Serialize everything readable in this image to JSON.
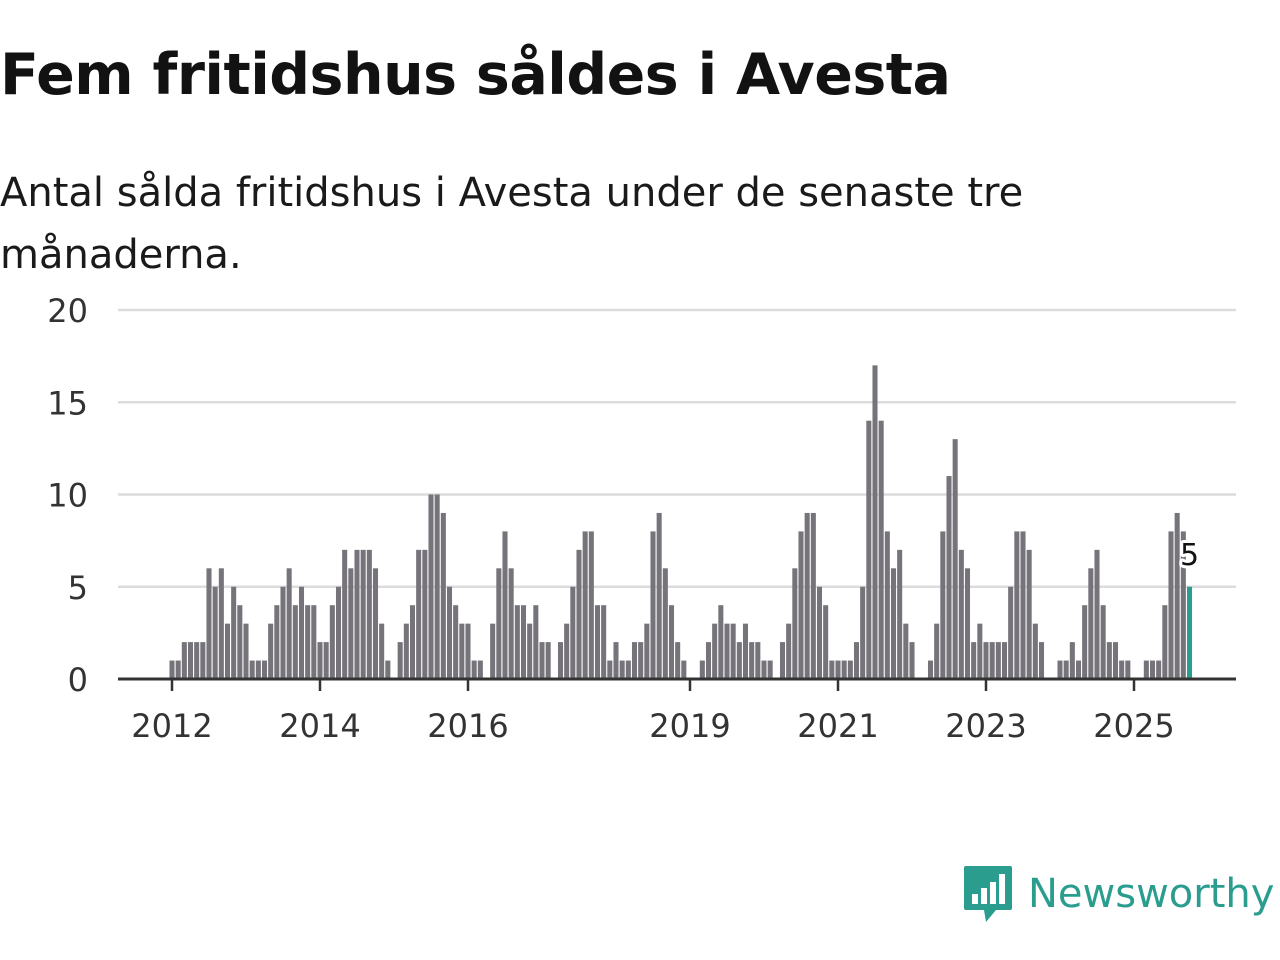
{
  "title": "Fem fritidshus såldes i Avesta",
  "subtitle": "Antal sålda fritidshus i Avesta under de senaste tre månaderna.",
  "brand": {
    "name": "Newsworthy",
    "icon": "bar-chart-speech-bubble-icon",
    "color": "#2a9d8f"
  },
  "colors": {
    "bar": "#76747a",
    "highlight": "#2a9d8f",
    "grid": "#dcdcdc",
    "axis": "#333333",
    "text": "#333333"
  },
  "chart_data": {
    "type": "bar",
    "title": "Fem fritidshus såldes i Avesta",
    "subtitle": "Antal sålda fritidshus i Avesta under de senaste tre månaderna.",
    "xlabel": "",
    "ylabel": "",
    "ylim": [
      0,
      20
    ],
    "yticks": [
      0,
      5,
      10,
      15,
      20
    ],
    "grid": true,
    "x_start": 2011.0,
    "x_step": 0.0833,
    "xticks": [
      {
        "value": 2012.0,
        "label": "2012"
      },
      {
        "value": 2014.0,
        "label": "2014"
      },
      {
        "value": 2016.0,
        "label": "2016"
      },
      {
        "value": 2019.0,
        "label": "2019"
      },
      {
        "value": 2021.0,
        "label": "2021"
      },
      {
        "value": 2023.0,
        "label": "2023"
      },
      {
        "value": 2025.0,
        "label": "2025"
      }
    ],
    "values": [
      0,
      0,
      0,
      0,
      0,
      0,
      0,
      0,
      0,
      0,
      0,
      0,
      1,
      1,
      2,
      2,
      2,
      2,
      6,
      5,
      6,
      3,
      5,
      4,
      3,
      1,
      1,
      1,
      3,
      4,
      5,
      6,
      4,
      5,
      4,
      4,
      2,
      2,
      4,
      5,
      7,
      6,
      7,
      7,
      7,
      6,
      3,
      1,
      0,
      2,
      3,
      4,
      7,
      7,
      10,
      10,
      9,
      5,
      4,
      3,
      3,
      1,
      1,
      0,
      3,
      6,
      8,
      6,
      4,
      4,
      3,
      4,
      2,
      2,
      0,
      2,
      3,
      5,
      7,
      8,
      8,
      4,
      4,
      1,
      2,
      1,
      1,
      2,
      2,
      3,
      8,
      9,
      6,
      4,
      2,
      1,
      0,
      0,
      1,
      2,
      3,
      4,
      3,
      3,
      2,
      3,
      2,
      2,
      1,
      1,
      0,
      2,
      3,
      6,
      8,
      9,
      9,
      5,
      4,
      1,
      1,
      1,
      1,
      2,
      5,
      14,
      17,
      14,
      8,
      6,
      7,
      3,
      2,
      0,
      0,
      1,
      3,
      8,
      11,
      13,
      7,
      6,
      2,
      3,
      2,
      2,
      2,
      2,
      5,
      8,
      8,
      7,
      3,
      2,
      0,
      0,
      1,
      1,
      2,
      1,
      4,
      6,
      7,
      4,
      2,
      2,
      1,
      1,
      0,
      0,
      1,
      1,
      1,
      4,
      8,
      9,
      8,
      5
    ],
    "highlight_last": true,
    "annotation": {
      "label": "5"
    }
  }
}
